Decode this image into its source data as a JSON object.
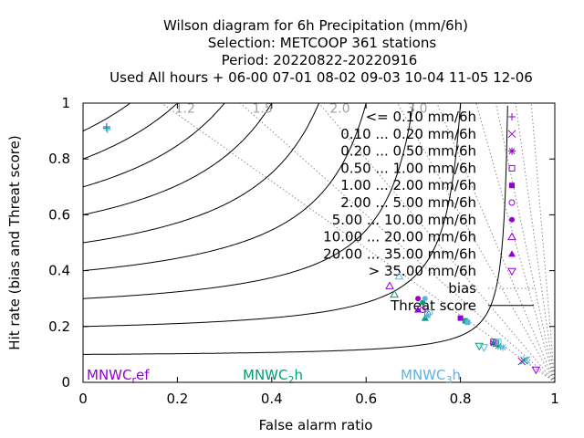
{
  "chart_data": {
    "type": "scatter",
    "title_lines": [
      "Wilson diagram  for 6h Precipitation (mm/6h)",
      "Selection: METCOOP    361 stations",
      "Period: 20220822-20220916",
      "Used  All hours  + 06-00 07-01 08-02 09-03 10-04 11-05 12-06"
    ],
    "xlabel": "False alarm ratio",
    "ylabel": "Hit rate (bias and Threat score)",
    "xlim": [
      0,
      1
    ],
    "ylim": [
      0,
      1
    ],
    "x_ticks": [
      "0",
      "0.2",
      "0.4",
      "0.6",
      "0.8",
      "1"
    ],
    "y_ticks": [
      "0",
      "0.2",
      "0.4",
      "0.6",
      "0.8",
      "1"
    ],
    "bias_values": [
      1.2,
      1.5,
      2.0,
      3.0,
      4.0,
      6.0,
      8.0,
      12.0,
      20.0
    ],
    "bias_labels": [
      "1.2",
      "1.5",
      "2.0",
      "3.0"
    ],
    "threat_scores": [
      0.1,
      0.2,
      0.3,
      0.4,
      0.5,
      0.6,
      0.7,
      0.8,
      0.9
    ],
    "legend_position": "top-right",
    "legend": [
      {
        "label": "<= 0.10 mm/6h",
        "symbol": "plus"
      },
      {
        "label": "0.10 ... 0.20 mm/6h",
        "symbol": "cross"
      },
      {
        "label": "0.20 ... 0.50 mm/6h",
        "symbol": "star"
      },
      {
        "label": "0.50 ... 1.00 mm/6h",
        "symbol": "square"
      },
      {
        "label": "1.00 ... 2.00 mm/6h",
        "symbol": "square-filled"
      },
      {
        "label": "2.00 ... 5.00 mm/6h",
        "symbol": "circle"
      },
      {
        "label": "5.00 ... 10.00 mm/6h",
        "symbol": "circle-filled"
      },
      {
        "label": "10.00 ... 20.00 mm/6h",
        "symbol": "triangle"
      },
      {
        "label": "20.00 ... 35.00 mm/6h",
        "symbol": "triangle-filled"
      },
      {
        "label": "> 35.00 mm/6h",
        "symbol": "triangle-down"
      },
      {
        "label": "bias",
        "symbol": "line-dotted"
      },
      {
        "label": "Threat score",
        "symbol": "line-solid"
      }
    ],
    "series": [
      {
        "name": "MNWC_ref",
        "color": "#9400d3",
        "points": [
          {
            "cls": 0,
            "x": 0.05,
            "y": 0.915
          },
          {
            "cls": 1,
            "x": 0.93,
            "y": 0.075
          },
          {
            "cls": 2,
            "x": 0.87,
            "y": 0.14
          },
          {
            "cls": 3,
            "x": 0.87,
            "y": 0.145
          },
          {
            "cls": 4,
            "x": 0.8,
            "y": 0.23
          },
          {
            "cls": 5,
            "x": 0.72,
            "y": 0.26
          },
          {
            "cls": 6,
            "x": 0.71,
            "y": 0.3
          },
          {
            "cls": 7,
            "x": 0.65,
            "y": 0.345
          },
          {
            "cls": 8,
            "x": 0.71,
            "y": 0.26
          },
          {
            "cls": 9,
            "x": 0.96,
            "y": 0.045
          }
        ]
      },
      {
        "name": "MNWC_2h",
        "color": "#009e73",
        "points": [
          {
            "cls": 0,
            "x": 0.05,
            "y": 0.91
          },
          {
            "cls": 1,
            "x": 0.935,
            "y": 0.078
          },
          {
            "cls": 2,
            "x": 0.88,
            "y": 0.13
          },
          {
            "cls": 3,
            "x": 0.875,
            "y": 0.14
          },
          {
            "cls": 4,
            "x": 0.81,
            "y": 0.22
          },
          {
            "cls": 5,
            "x": 0.73,
            "y": 0.245
          },
          {
            "cls": 6,
            "x": 0.72,
            "y": 0.285
          },
          {
            "cls": 7,
            "x": 0.66,
            "y": 0.315
          },
          {
            "cls": 8,
            "x": 0.725,
            "y": 0.23
          },
          {
            "cls": 9,
            "x": 0.84,
            "y": 0.13
          }
        ]
      },
      {
        "name": "MNWC_3h",
        "color": "#56b4e9",
        "points": [
          {
            "cls": 0,
            "x": 0.052,
            "y": 0.905
          },
          {
            "cls": 1,
            "x": 0.94,
            "y": 0.08
          },
          {
            "cls": 2,
            "x": 0.89,
            "y": 0.125
          },
          {
            "cls": 3,
            "x": 0.88,
            "y": 0.145
          },
          {
            "cls": 4,
            "x": 0.815,
            "y": 0.215
          },
          {
            "cls": 5,
            "x": 0.735,
            "y": 0.25
          },
          {
            "cls": 6,
            "x": 0.725,
            "y": 0.3
          },
          {
            "cls": 7,
            "x": 0.67,
            "y": 0.38
          },
          {
            "cls": 8,
            "x": 0.73,
            "y": 0.24
          },
          {
            "cls": 9,
            "x": 0.85,
            "y": 0.125
          }
        ]
      }
    ],
    "model_labels": [
      {
        "main": "MNWC",
        "sub": "r",
        "rest": "ef",
        "color": "#9400d3"
      },
      {
        "main": "MNWC",
        "sub": "2",
        "rest": "h",
        "color": "#009e73"
      },
      {
        "main": "MNWC",
        "sub": "3",
        "rest": "h",
        "color": "#56b4e9"
      }
    ]
  }
}
